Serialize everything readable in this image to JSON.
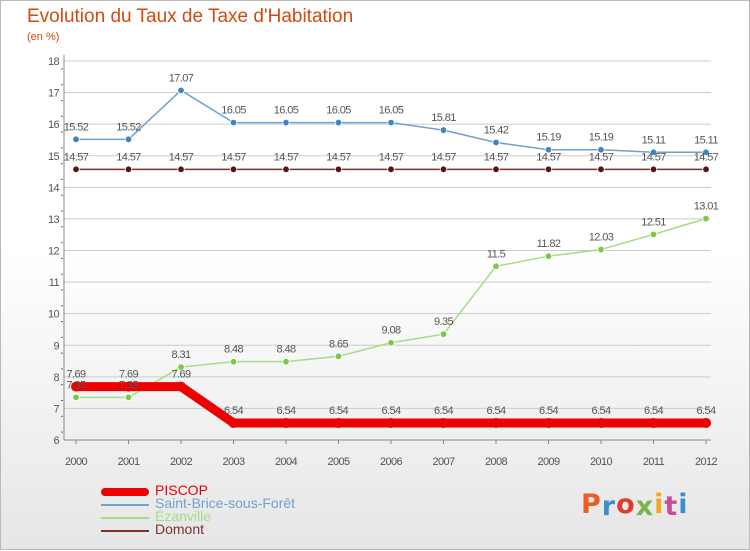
{
  "header": {
    "title": "Evolution du Taux de Taxe d'Habitation",
    "subtitle": "(en %)"
  },
  "logo": {
    "text": "Proxiti",
    "letter_colors": [
      "#e85f1f",
      "#3a8fd1",
      "#e23a2e",
      "#7ab648",
      "#f2a81d",
      "#c84d9c",
      "#3a8fd1"
    ]
  },
  "colors": {
    "title": "#d14a10",
    "grid": "#cccccc",
    "axis": "#888888",
    "label": "#555555"
  },
  "chart_data": {
    "type": "line",
    "title": "Evolution du Taux de Taxe d'Habitation",
    "ylabel": "(en %)",
    "xlabel": "",
    "ylim": [
      6,
      18
    ],
    "yticks": [
      6,
      7,
      8,
      9,
      10,
      11,
      12,
      13,
      14,
      15,
      16,
      17,
      18
    ],
    "grid": "horizontal",
    "legend_position": "bottom-left",
    "x": [
      "2000",
      "2001",
      "2002",
      "2003",
      "2004",
      "2005",
      "2006",
      "2007",
      "2008",
      "2009",
      "2010",
      "2011",
      "2012"
    ],
    "series": [
      {
        "name": "PISCOP",
        "color": "#ee0000",
        "style": "thick",
        "values": [
          7.69,
          7.69,
          7.69,
          6.54,
          6.54,
          6.54,
          6.54,
          6.54,
          6.54,
          6.54,
          6.54,
          6.54,
          6.54
        ],
        "labels": [
          "7.69",
          "7.69",
          "7.69",
          "6.54",
          "6.54",
          "6.54",
          "6.54",
          "6.54",
          "6.54",
          "6.54",
          "6.54",
          "6.54",
          "6.54"
        ]
      },
      {
        "name": "Saint-Brice-sous-Forêt",
        "color": "#6fa0d2",
        "marker": "#3d86c6",
        "values": [
          15.52,
          15.52,
          17.07,
          16.05,
          16.05,
          16.05,
          16.05,
          15.81,
          15.42,
          15.19,
          15.19,
          15.11,
          15.11
        ],
        "labels": [
          "15.52",
          "15.52",
          "17.07",
          "16.05",
          "16.05",
          "16.05",
          "16.05",
          "15.81",
          "15.42",
          "15.19",
          "15.19",
          "15.11",
          "15.11"
        ]
      },
      {
        "name": "Ézanville",
        "color": "#a6dc85",
        "marker": "#7ec846",
        "values": [
          7.35,
          7.35,
          8.31,
          8.48,
          8.48,
          8.65,
          9.08,
          9.35,
          11.5,
          11.82,
          12.03,
          12.51,
          13.01
        ],
        "labels": [
          "7.35",
          "7.35",
          "8.31",
          "8.48",
          "8.48",
          "8.65",
          "9.08",
          "9.35",
          "11.5",
          "11.82",
          "12.03",
          "12.51",
          "13.01"
        ]
      },
      {
        "name": "Domont",
        "color": "#7a3030",
        "marker": "#5a1414",
        "values": [
          14.57,
          14.57,
          14.57,
          14.57,
          14.57,
          14.57,
          14.57,
          14.57,
          14.57,
          14.57,
          14.57,
          14.57,
          14.57
        ],
        "labels": [
          "14.57",
          "14.57",
          "14.57",
          "14.57",
          "14.57",
          "14.57",
          "14.57",
          "14.57",
          "14.57",
          "14.57",
          "14.57",
          "14.57",
          "14.57"
        ]
      }
    ]
  }
}
